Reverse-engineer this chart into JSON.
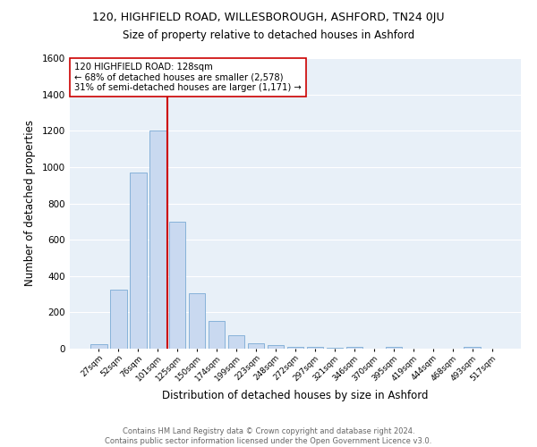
{
  "title": "120, HIGHFIELD ROAD, WILLESBOROUGH, ASHFORD, TN24 0JU",
  "subtitle": "Size of property relative to detached houses in Ashford",
  "xlabel": "Distribution of detached houses by size in Ashford",
  "ylabel": "Number of detached properties",
  "bar_color": "#c9d9f0",
  "bar_edge_color": "#7aaad4",
  "grid_color": "#ffffff",
  "bg_color": "#e8f0f8",
  "categories": [
    "27sqm",
    "52sqm",
    "76sqm",
    "101sqm",
    "125sqm",
    "150sqm",
    "174sqm",
    "199sqm",
    "223sqm",
    "248sqm",
    "272sqm",
    "297sqm",
    "321sqm",
    "346sqm",
    "370sqm",
    "395sqm",
    "419sqm",
    "444sqm",
    "468sqm",
    "493sqm",
    "517sqm"
  ],
  "values": [
    25,
    325,
    970,
    1200,
    700,
    305,
    155,
    75,
    30,
    20,
    10,
    8,
    5,
    12,
    0,
    12,
    0,
    0,
    0,
    12,
    0
  ],
  "ylim": [
    0,
    1600
  ],
  "yticks": [
    0,
    200,
    400,
    600,
    800,
    1000,
    1200,
    1400,
    1600
  ],
  "property_line_bar_index": 3.5,
  "property_line_color": "#cc0000",
  "annotation_text": "120 HIGHFIELD ROAD: 128sqm\n← 68% of detached houses are smaller (2,578)\n31% of semi-detached houses are larger (1,171) →",
  "annotation_box_color": "#ffffff",
  "annotation_box_edge_color": "#cc0000",
  "footer_line1": "Contains HM Land Registry data © Crown copyright and database right 2024.",
  "footer_line2": "Contains public sector information licensed under the Open Government Licence v3.0."
}
